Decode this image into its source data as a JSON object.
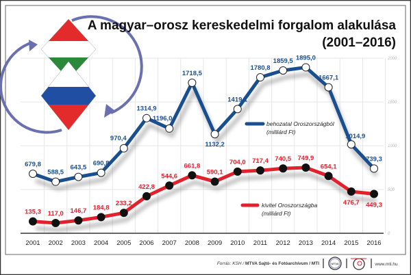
{
  "chart_data": {
    "type": "line",
    "title": "A magyar–orosz kereskedelmi forgalom alakulása",
    "subtitle": "(2001–2016)",
    "categories": [
      "2001",
      "2002",
      "2003",
      "2004",
      "2005",
      "2006",
      "2007",
      "2008",
      "2009",
      "2010",
      "2011",
      "2012",
      "2013",
      "2014",
      "2015",
      "2016"
    ],
    "ylim": [
      0,
      2000
    ],
    "yticks": [
      "0",
      "500",
      "1000",
      "1500",
      "2000"
    ],
    "grid": true,
    "series": [
      {
        "name": "behozatal Oroszországból",
        "unit": "(milliárd Ft)",
        "color": "#1a4f8f",
        "values": [
          679.8,
          588.5,
          643.5,
          690.8,
          970.4,
          1314.9,
          1196.0,
          1718.5,
          1132.2,
          1419.1,
          1780.8,
          1859.5,
          1895.0,
          1667.1,
          1014.9,
          739.3
        ],
        "labels": [
          "679,8",
          "588,5",
          "643,5",
          "690,8",
          "970,4",
          "1314,9",
          "1196,0",
          "1718,5",
          "1132,2",
          "1419,1",
          "1780,8",
          "1859,5",
          "1895,0",
          "1667,1",
          "1014,9",
          "739,3"
        ]
      },
      {
        "name": "kivitel Oroszországba",
        "unit": "(milliárd Ft)",
        "color": "#e3212d",
        "values": [
          135.3,
          117.0,
          146.7,
          184.8,
          233.2,
          422.8,
          544.6,
          661.8,
          590.1,
          704.0,
          717.4,
          740.5,
          749.9,
          654.1,
          476.7,
          449.3
        ],
        "labels": [
          "135,3",
          "117,0",
          "146,7",
          "184,8",
          "233,2",
          "422,8",
          "544,6",
          "661,8",
          "590,1",
          "704,0",
          "717,4",
          "740,5",
          "749,9",
          "654,1",
          "476,7",
          "449,3"
        ]
      }
    ]
  },
  "footer": {
    "source_prefix": "Forrás: KSH / ",
    "source_bold": "MTVA Sajtó- és Fotóarchívum / MTI",
    "logo1": "MTVA",
    "website": "www.mti.hu"
  }
}
